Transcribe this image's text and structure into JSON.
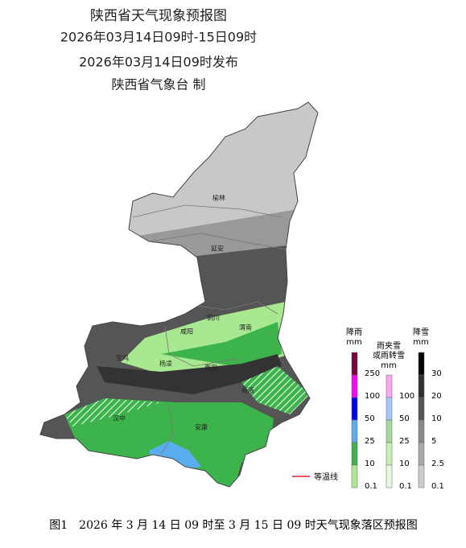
{
  "header": {
    "lines": [
      "陕西省天气现象预报图",
      "2026年03月14日09时-15日09时",
      "2026年03月14日09时发布",
      "陕西省气象台 制"
    ]
  },
  "map": {
    "cities": [
      "榆林",
      "延安",
      "铜川",
      "渭南",
      "咸阳",
      "宝鸡",
      "杨凌",
      "西安",
      "商洛",
      "汉中",
      "安康"
    ]
  },
  "legend": {
    "rain": {
      "title": "降雨",
      "unit": "mm",
      "levels": [
        250,
        100,
        50,
        25,
        10,
        0.1
      ],
      "colors": [
        "#7a0040",
        "#ff00ff",
        "#0000ff",
        "#5aaef0",
        "#3cb44b",
        "#a8e890"
      ]
    },
    "sleet": {
      "title": [
        "雨夹雪",
        "或雨转雪"
      ],
      "unit": "mm",
      "levels": [
        100,
        50,
        25,
        10,
        0.1
      ],
      "colors": [
        "#f7a8f0",
        "#a8c8f8",
        "#a8d8a0",
        "#c8f0b8",
        "#e8f8e0"
      ]
    },
    "snow": {
      "title": "降雪",
      "unit": "mm",
      "levels": [
        30,
        20,
        10,
        5,
        2.5,
        0.1
      ],
      "colors": [
        "#000000",
        "#303030",
        "#555555",
        "#888888",
        "#aaaaaa",
        "#cccccc"
      ]
    },
    "isotherm": "等温线"
  },
  "caption": "图1　2026 年 3 月 14 日 09 时至 3 月 15 日 09 时天气现象落区预报图"
}
